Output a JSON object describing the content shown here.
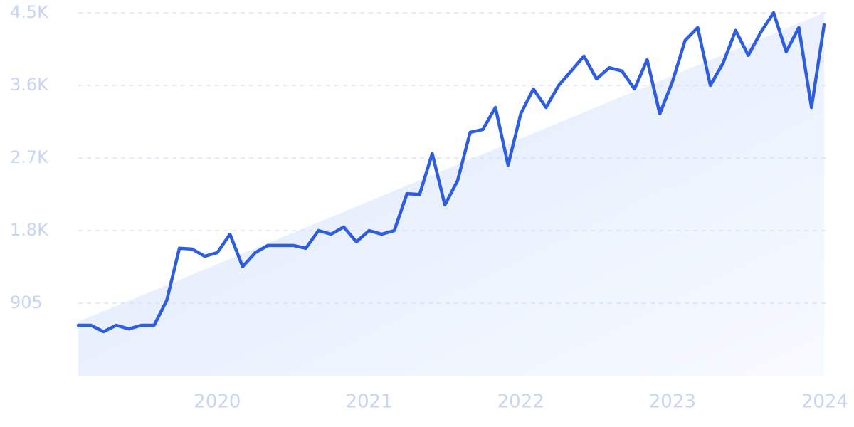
{
  "chart_data": {
    "type": "line",
    "categories": [
      null,
      null,
      null,
      null,
      null,
      null,
      null,
      null,
      null,
      null,
      null,
      "2020",
      null,
      null,
      null,
      null,
      null,
      null,
      null,
      null,
      null,
      null,
      null,
      "2021",
      null,
      null,
      null,
      null,
      null,
      null,
      null,
      null,
      null,
      null,
      null,
      "2022",
      null,
      null,
      null,
      null,
      null,
      null,
      null,
      null,
      null,
      null,
      null,
      "2023",
      null,
      null,
      null,
      null,
      null,
      null,
      null,
      null,
      null,
      null,
      null,
      "2024"
    ],
    "series": [
      {
        "color": "#2f5de0",
        "values": [
          630,
          630,
          550,
          630,
          585,
          630,
          630,
          940,
          1590,
          1580,
          1490,
          1535,
          1765,
          1360,
          1535,
          1625,
          1625,
          1625,
          1590,
          1810,
          1765,
          1855,
          1670,
          1810,
          1765,
          1810,
          2270,
          2260,
          2770,
          2130,
          2430,
          3035,
          3070,
          3345,
          2625,
          3265,
          3575,
          3345,
          3620,
          3800,
          3985,
          3700,
          3840,
          3800,
          3575,
          3940,
          3265,
          3665,
          4180,
          4340,
          3620,
          3895,
          4305,
          3995,
          4285,
          4525,
          4040,
          4340,
          3345,
          4375
        ]
      }
    ],
    "ylim": [
      0,
      4525
    ],
    "yticks": [
      905,
      {
        "value": 1810,
        "label": "1.8K"
      },
      {
        "value": 2715,
        "label": "2.7K"
      },
      {
        "value": 3620,
        "label": "3.6K"
      },
      {
        "value": 4525,
        "label": "4.5K"
      }
    ],
    "grid": true
  }
}
